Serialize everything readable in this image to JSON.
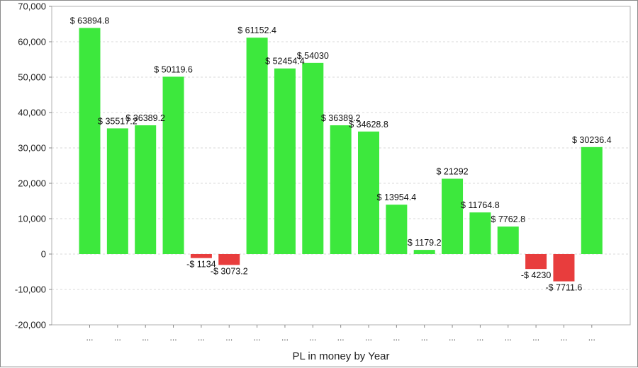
{
  "chart_data": {
    "type": "bar",
    "title": "",
    "xlabel": "PL in money by Year",
    "ylabel": "",
    "ylim": [
      -20000,
      70000
    ],
    "yticks": [
      70000,
      60000,
      50000,
      40000,
      30000,
      20000,
      10000,
      0,
      -10000,
      -20000
    ],
    "ytick_labels": [
      "70,000",
      "60,000",
      "50,000",
      "40,000",
      "30,000",
      "20,000",
      "10,000",
      "0",
      "-10,000",
      "-20,000"
    ],
    "grid": true,
    "categories": [
      "...",
      "...",
      "...",
      "...",
      "...",
      "...",
      "...",
      "...",
      "...",
      "...",
      "...",
      "...",
      "...",
      "...",
      "...",
      "...",
      "...",
      "...",
      "..."
    ],
    "values": [
      63894.8,
      35517.2,
      36389.2,
      50119.6,
      -1134,
      -3073.2,
      61152.4,
      52454.4,
      54030,
      36389.2,
      34628.8,
      13954.4,
      1179.2,
      21292,
      11764.8,
      7762.8,
      -4230,
      -7711.6,
      30236.4
    ],
    "data_labels": [
      "$ 63894.8",
      "$ 35517.2",
      "$ 36389.2",
      "$ 50119.6",
      "-$ 1134",
      "-$ 3073.2",
      "$ 61152.4",
      "$ 52454.4",
      "$ 54030",
      "$ 36389.2",
      "$ 34628.8",
      "$ 13954.4",
      "$ 1179.2",
      "$ 21292",
      "$ 11764.8",
      "$ 7762.8",
      "-$ 4230",
      "-$ 7711.6",
      "$ 30236.4"
    ],
    "colors": {
      "positive": "#3de83d",
      "negative": "#e83d3d",
      "grid": "#d8d8d8",
      "axis": "#888888"
    }
  }
}
